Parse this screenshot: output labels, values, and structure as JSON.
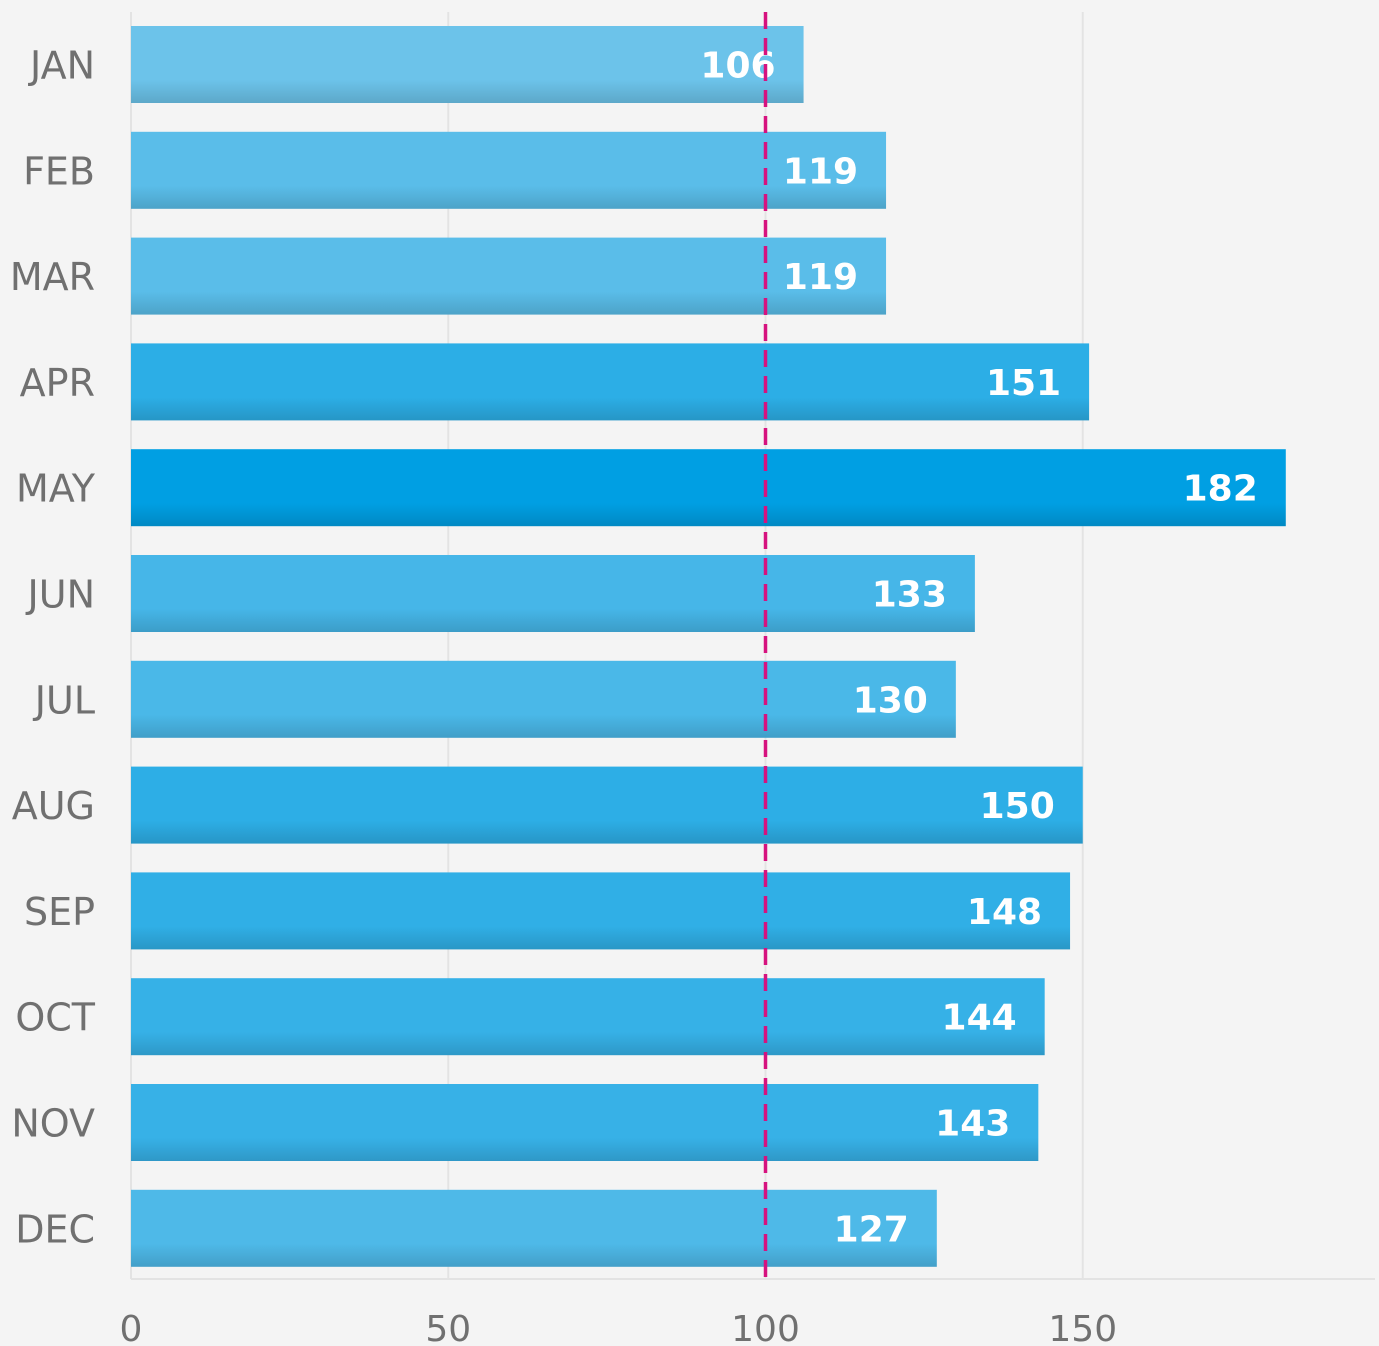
{
  "chart_data": {
    "type": "bar",
    "orientation": "horizontal",
    "categories": [
      "JAN",
      "FEB",
      "MAR",
      "APR",
      "MAY",
      "JUN",
      "JUL",
      "AUG",
      "SEP",
      "OCT",
      "NOV",
      "DEC"
    ],
    "values": [
      106,
      119,
      119,
      151,
      182,
      133,
      130,
      150,
      148,
      144,
      143,
      127
    ],
    "x_ticks": [
      0,
      50,
      100,
      150
    ],
    "xlim": [
      0,
      195
    ],
    "reference_line": {
      "value": 100,
      "style": "dashed",
      "color": "#d6127f"
    },
    "grid": true,
    "colors": {
      "bar_min": "#6cc3ea",
      "bar_max": "#009fe3",
      "grid": "#e3e3e3",
      "axis_text": "#707070",
      "value_text": "#ffffff"
    }
  }
}
